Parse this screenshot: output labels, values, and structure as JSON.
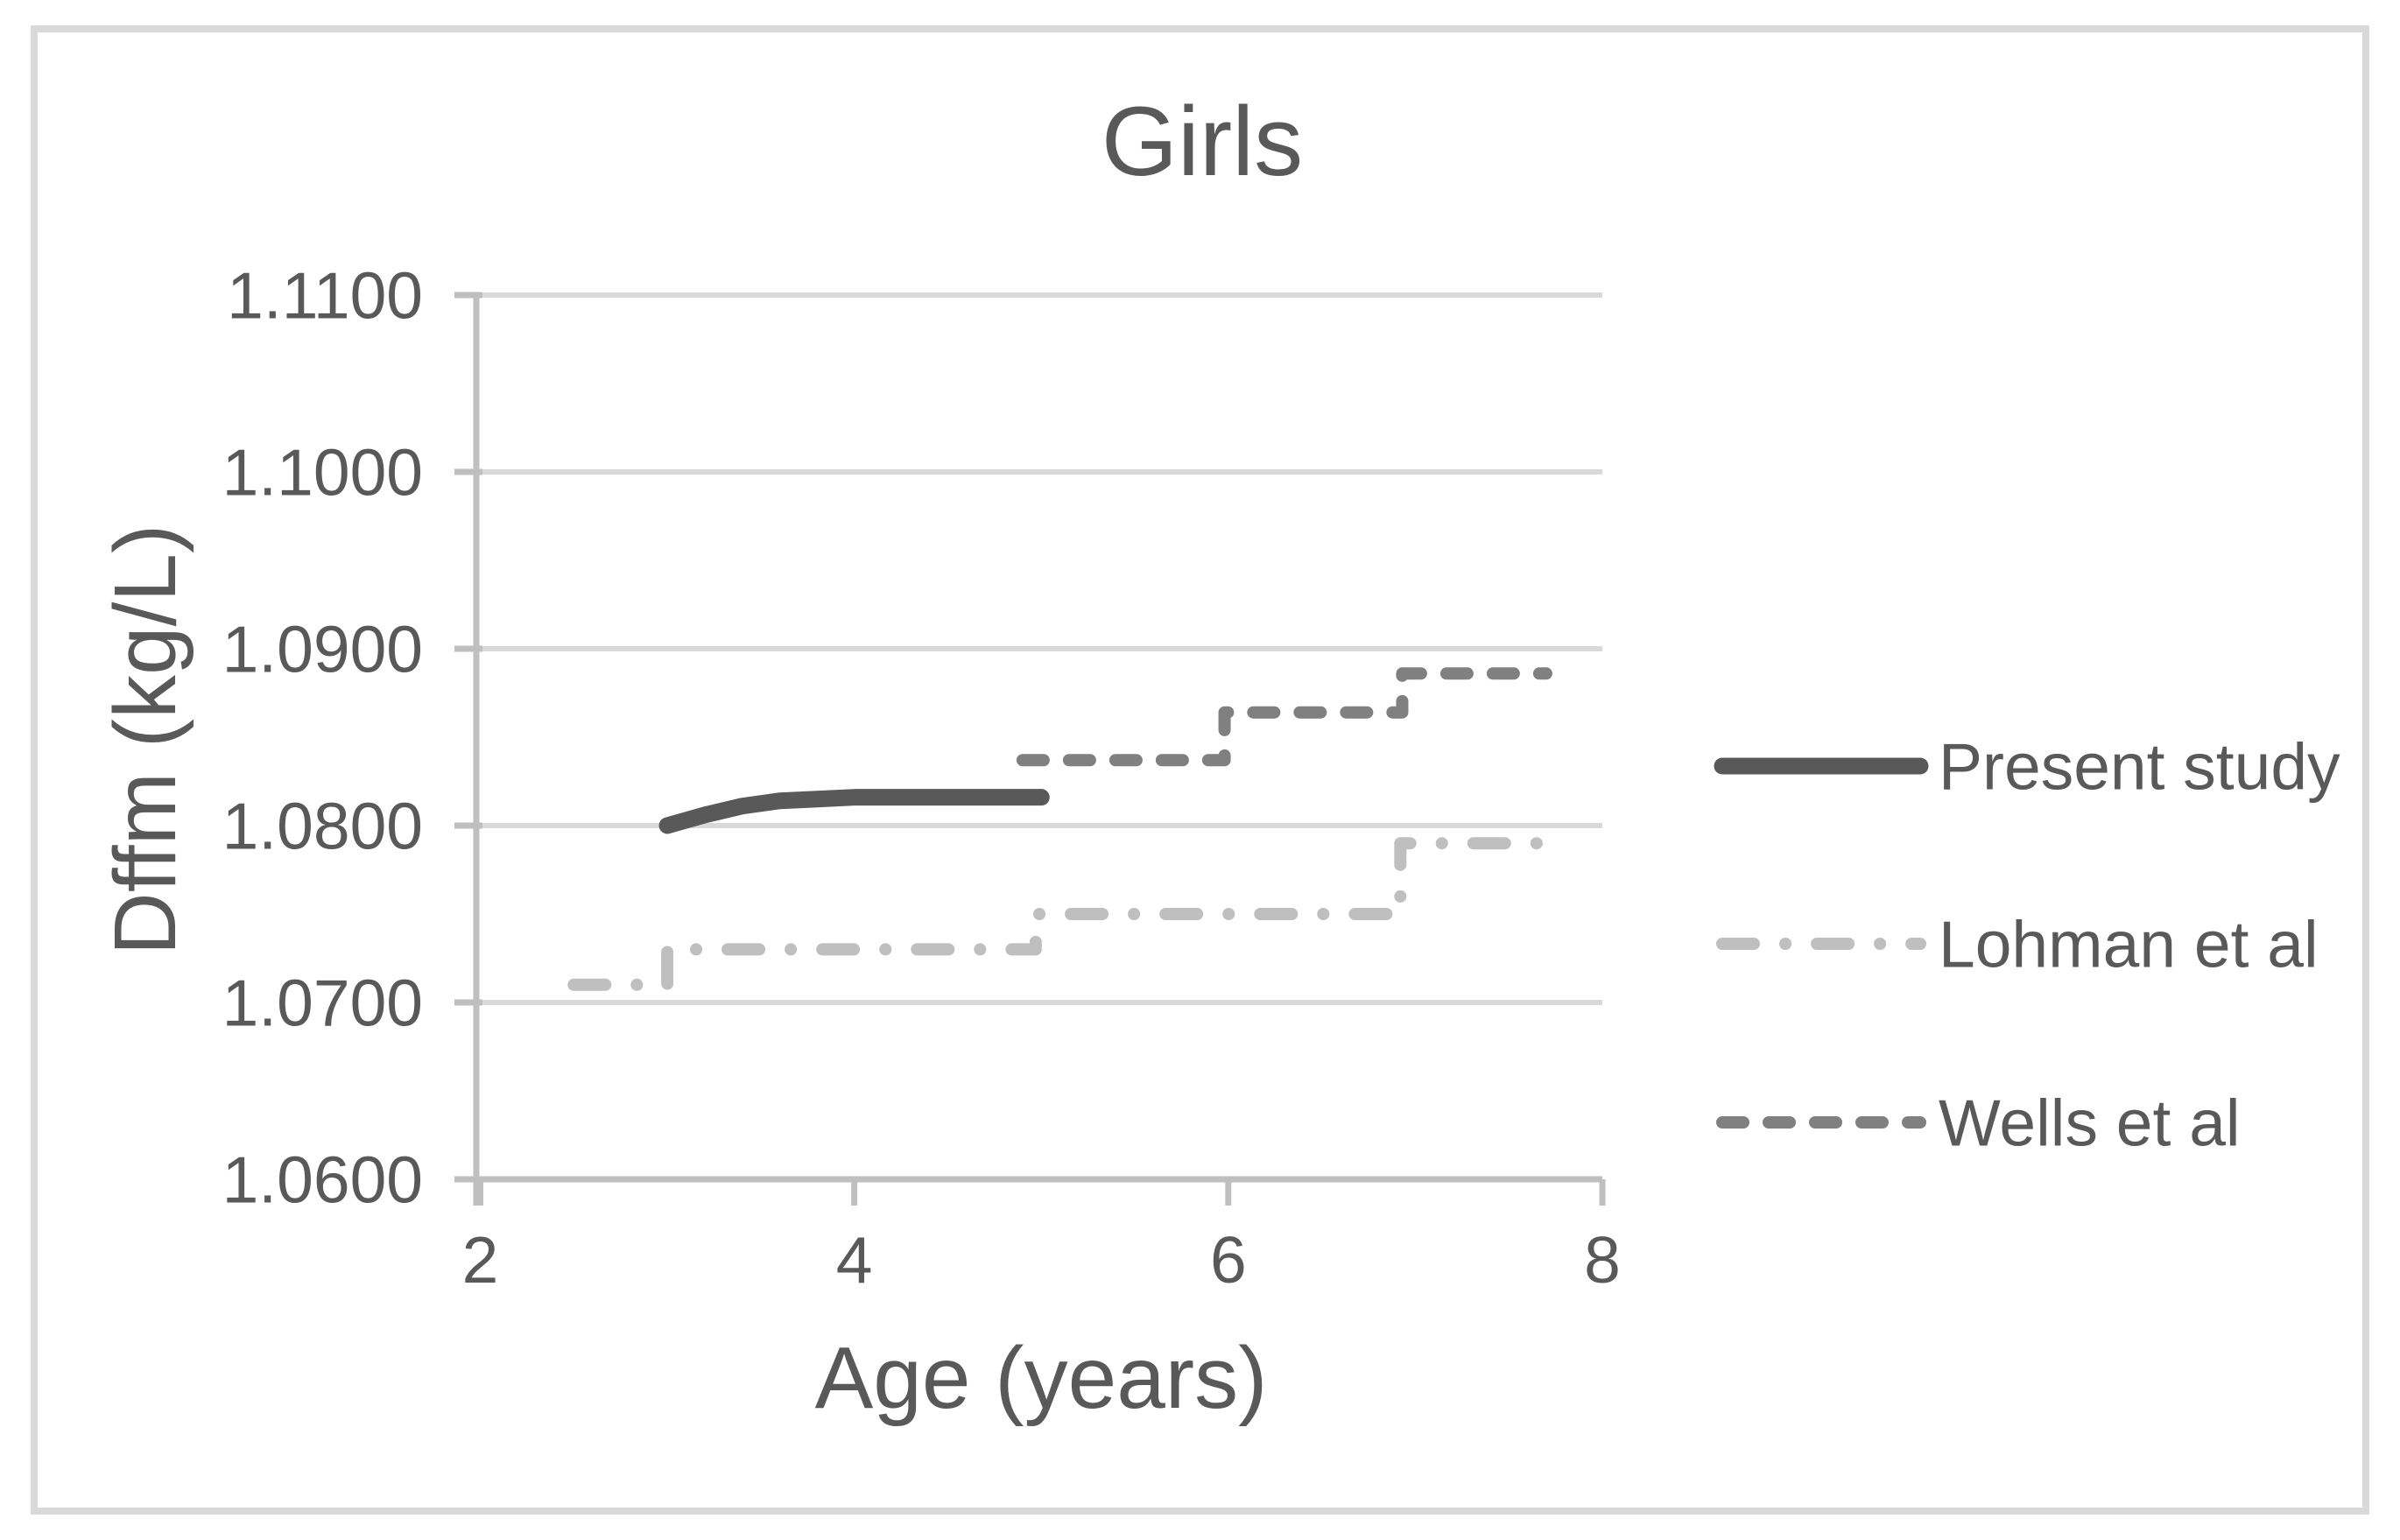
{
  "chart_data": {
    "type": "line",
    "title": "Girls",
    "xlabel": "Age (years)",
    "ylabel": "Dffm (kg/L)",
    "xlim": [
      2,
      8
    ],
    "ylim": [
      1.06,
      1.11
    ],
    "x_ticks": [
      2,
      4,
      6,
      8
    ],
    "y_ticks": [
      {
        "value": 1.06,
        "label": "1.0600"
      },
      {
        "value": 1.07,
        "label": "1.0700"
      },
      {
        "value": 1.08,
        "label": "1.0800"
      },
      {
        "value": 1.09,
        "label": "1.0900"
      },
      {
        "value": 1.1,
        "label": "1.1000"
      },
      {
        "value": 1.11,
        "label": "1.1100"
      }
    ],
    "grid": "horizontal-major",
    "legend_position": "right",
    "colors": {
      "text": "#595959",
      "gridline": "#d9d9d9",
      "axis": "#bfbfbf",
      "frame_border": "#d9d9d9",
      "background": "#ffffff"
    },
    "series": [
      {
        "name": "Present study",
        "style": "solid",
        "color": "#595959",
        "stroke_width": 19,
        "x": [
          3.0,
          3.2,
          3.4,
          3.6,
          3.8,
          4.0,
          4.5,
          5.0
        ],
        "y": [
          1.08,
          1.0806,
          1.0811,
          1.0814,
          1.0815,
          1.0816,
          1.0816,
          1.0816
        ]
      },
      {
        "name": "Lohman et al",
        "style": "dashdot",
        "color": "#bfbfbf",
        "stroke_width": 14,
        "x": [
          2.5,
          3.0,
          3.0,
          4.97,
          4.97,
          6.92,
          6.92,
          7.7
        ],
        "y": [
          1.071,
          1.071,
          1.073,
          1.073,
          1.075,
          1.075,
          1.079,
          1.079
        ]
      },
      {
        "name": "Wells et al",
        "style": "dash",
        "color": "#808080",
        "stroke_width": 14,
        "x": [
          4.9,
          5.98,
          5.98,
          6.93,
          6.93,
          7.7
        ],
        "y": [
          1.0837,
          1.0837,
          1.0864,
          1.0864,
          1.0886,
          1.0886
        ]
      }
    ]
  }
}
